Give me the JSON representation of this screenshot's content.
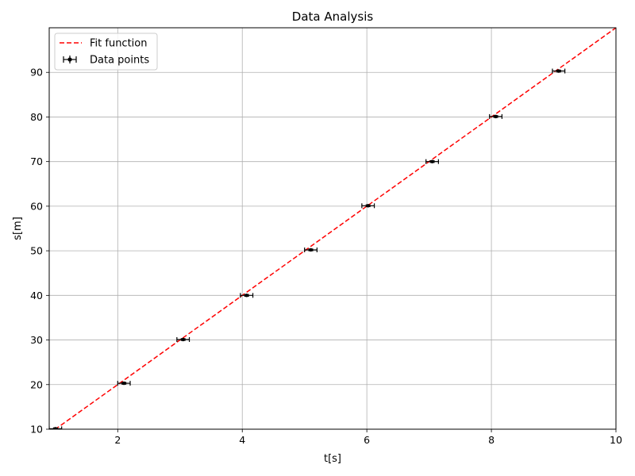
{
  "chart_data": {
    "type": "scatter",
    "title": "Data Analysis",
    "xlabel": "t[s]",
    "ylabel": "s[m]",
    "xlim": [
      0.9,
      10
    ],
    "ylim": [
      10,
      100
    ],
    "xticks": [
      2,
      4,
      6,
      8,
      10
    ],
    "yticks": [
      10,
      20,
      30,
      40,
      50,
      60,
      70,
      80,
      90
    ],
    "grid": true,
    "legend_position": "top-left",
    "series": [
      {
        "name": "Fit function",
        "kind": "line",
        "style": "dashed",
        "color": "#ff0000",
        "x": [
          0.9,
          10
        ],
        "y": [
          9.0,
          100.0
        ]
      },
      {
        "name": "Data points",
        "kind": "errorbar",
        "color": "#000000",
        "x": [
          1.0,
          2.1,
          3.05,
          4.07,
          5.1,
          6.02,
          7.05,
          8.07,
          9.08
        ],
        "y": [
          10.1,
          20.3,
          30.1,
          40.0,
          50.2,
          60.1,
          70.0,
          80.1,
          90.3
        ],
        "xerr": [
          0.1,
          0.1,
          0.1,
          0.1,
          0.1,
          0.1,
          0.1,
          0.1,
          0.1
        ],
        "yerr": [
          0.2,
          0.2,
          0.2,
          0.2,
          0.2,
          0.2,
          0.2,
          0.2,
          0.2
        ]
      }
    ]
  }
}
